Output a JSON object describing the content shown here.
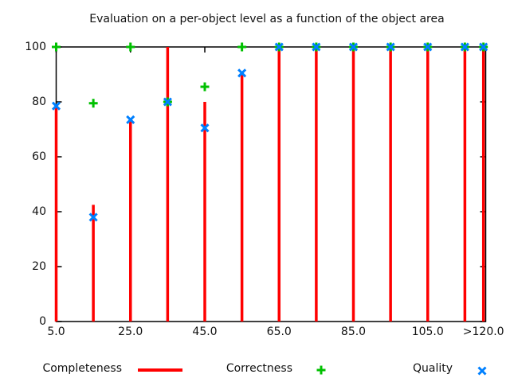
{
  "chart_data": {
    "type": "scatter",
    "title": "Evaluation on a per-object level as a function of the object area",
    "xlabel": "",
    "ylabel": "",
    "x": [
      5,
      15,
      25,
      35,
      45,
      55,
      65,
      75,
      85,
      95,
      105,
      115,
      120
    ],
    "series": [
      {
        "name": "Completeness",
        "style": "impulses",
        "marker": "none",
        "color": "#ff0000",
        "values": [
          78.5,
          42.5,
          73,
          100,
          80,
          90.5,
          100,
          100,
          100,
          100,
          100,
          100,
          100
        ]
      },
      {
        "name": "Correctness",
        "style": "points",
        "marker": "plus",
        "color": "#00c000",
        "values": [
          100,
          79.5,
          100,
          80,
          85.5,
          100,
          100,
          100,
          100,
          100,
          100,
          100,
          100
        ]
      },
      {
        "name": "Quality",
        "style": "points",
        "marker": "x",
        "color": "#0080ff",
        "values": [
          78.5,
          38,
          73.5,
          80,
          70.5,
          90.5,
          100,
          100,
          100,
          100,
          100,
          100,
          100
        ]
      }
    ],
    "x_ticks": {
      "values": [
        5,
        25,
        45,
        65,
        85,
        105,
        120
      ],
      "labels": [
        "5.0",
        "25.0",
        "45.0",
        "65.0",
        "85.0",
        "105.0",
        ">120.0"
      ]
    },
    "y_ticks": {
      "values": [
        0,
        20,
        40,
        60,
        80,
        100
      ],
      "labels": [
        "0",
        "20",
        "40",
        "60",
        "80",
        "100"
      ]
    },
    "xlim": [
      5,
      120.6
    ],
    "ylim": [
      0,
      100
    ],
    "grid": false,
    "legend_position": "below",
    "axis_color": "#000000",
    "background_color": "#ffffff"
  }
}
